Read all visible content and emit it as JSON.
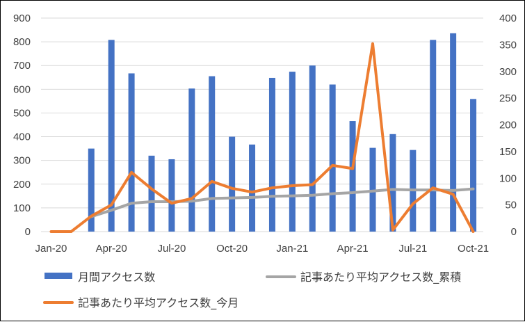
{
  "chart_data": {
    "type": "bar",
    "x": [
      "2020-01",
      "2020-02",
      "2020-03",
      "2020-04",
      "2020-05",
      "2020-06",
      "2020-07",
      "2020-08",
      "2020-09",
      "2020-10",
      "2020-11",
      "2020-12",
      "2021-01",
      "2021-02",
      "2021-03",
      "2021-04",
      "2021-05",
      "2021-06",
      "2021-07",
      "2021-08",
      "2021-09",
      "2021-10"
    ],
    "x_tick_labels": [
      "Jan-20",
      "Apr-20",
      "Jul-20",
      "Oct-20",
      "Jan-21",
      "Apr-21",
      "Jul-21",
      "Oct-21"
    ],
    "y_left_ticks": [
      "0",
      "100",
      "200",
      "300",
      "400",
      "500",
      "600",
      "700",
      "800",
      "900"
    ],
    "y_right_ticks": [
      "0",
      "50",
      "100",
      "150",
      "200",
      "250",
      "300",
      "350",
      "400"
    ],
    "ylim_left": [
      0,
      900
    ],
    "ylim_right": [
      0,
      400
    ],
    "grid": true,
    "legend_position": "bottom",
    "series": [
      {
        "name": "月間アクセス数",
        "kind": "bar",
        "axis": "left",
        "color": "#4472C4",
        "values": [
          0,
          0,
          350,
          808,
          667,
          320,
          305,
          603,
          655,
          400,
          367,
          648,
          674,
          700,
          620,
          466,
          353,
          411,
          344,
          808,
          836,
          559
        ]
      },
      {
        "name": "記事あたり平均アクセス数_累積",
        "kind": "line",
        "axis": "right",
        "color": "#A5A5A5",
        "values": [
          null,
          null,
          28,
          40,
          53,
          56,
          56,
          57,
          62,
          63,
          64,
          66,
          67,
          68,
          71,
          73,
          76,
          79,
          78,
          78,
          77,
          80
        ]
      },
      {
        "name": "記事あたり平均アクセス数_今月",
        "kind": "line",
        "axis": "right",
        "color": "#ED7D31",
        "values": [
          0,
          0,
          29,
          50,
          111,
          80,
          53,
          62,
          94,
          81,
          74,
          82,
          86,
          88,
          124,
          118,
          352,
          3,
          52,
          82,
          70,
          0
        ]
      }
    ]
  }
}
